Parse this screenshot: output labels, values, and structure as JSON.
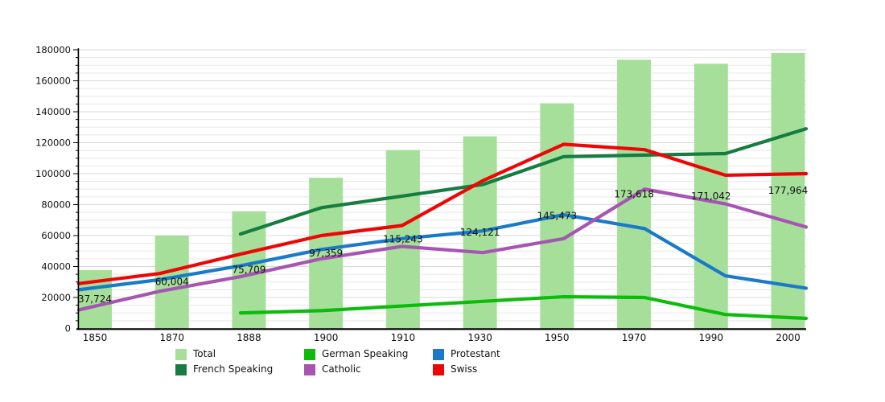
{
  "chart_data": {
    "type": "bar+line",
    "title": "",
    "categories": [
      "1850",
      "1870",
      "1888",
      "1900",
      "1910",
      "1930",
      "1950",
      "1970",
      "1990",
      "2000"
    ],
    "y_axis": {
      "min": 0,
      "max": 180000,
      "major_step": 20000,
      "minor_step": 5000,
      "tick_labels": [
        "0",
        "20000",
        "40000",
        "60000",
        "80000",
        "100000",
        "120000",
        "140000",
        "160000",
        "180000"
      ],
      "grid": "horizontal-only"
    },
    "bars": {
      "name": "Total",
      "color": "#a6df99",
      "values": [
        37724,
        60004,
        75709,
        97359,
        115243,
        124121,
        145473,
        173618,
        171042,
        177964
      ],
      "labels": [
        "37,724",
        "60,004",
        "75,709",
        "97,359",
        "115,243",
        "124,121",
        "145,473",
        "173,618",
        "171,042",
        "177,964"
      ]
    },
    "lines": [
      {
        "name": "French Speaking",
        "color": "#167d40",
        "values": [
          null,
          null,
          61000,
          78000,
          85500,
          93000,
          111000,
          112000,
          113000,
          129000
        ]
      },
      {
        "name": "German Speaking",
        "color": "#0dbb0d",
        "values": [
          null,
          null,
          10000,
          11500,
          14500,
          17500,
          20500,
          20000,
          9000,
          6500
        ]
      },
      {
        "name": "Protestant",
        "color": "#1a7ac9",
        "values": [
          25000,
          31500,
          40500,
          51000,
          58000,
          63000,
          73500,
          64500,
          34000,
          26000
        ]
      },
      {
        "name": "Catholic",
        "color": "#a656b2",
        "values": [
          12000,
          24000,
          33500,
          45000,
          53000,
          49000,
          58000,
          90000,
          80500,
          65500
        ]
      },
      {
        "name": "Swiss",
        "color": "#ee0606",
        "values": [
          29000,
          35500,
          48000,
          60000,
          66500,
          95500,
          119000,
          115500,
          99000,
          100000
        ]
      }
    ],
    "legend": {
      "position": "bottom",
      "items": [
        {
          "label": "Total",
          "color": "#a6df99"
        },
        {
          "label": "German Speaking",
          "color": "#0dbb0d"
        },
        {
          "label": "Protestant",
          "color": "#1a7ac9"
        },
        {
          "label": "French Speaking",
          "color": "#167d40"
        },
        {
          "label": "Catholic",
          "color": "#a656b2"
        },
        {
          "label": "Swiss",
          "color": "#ee0606"
        }
      ]
    }
  }
}
